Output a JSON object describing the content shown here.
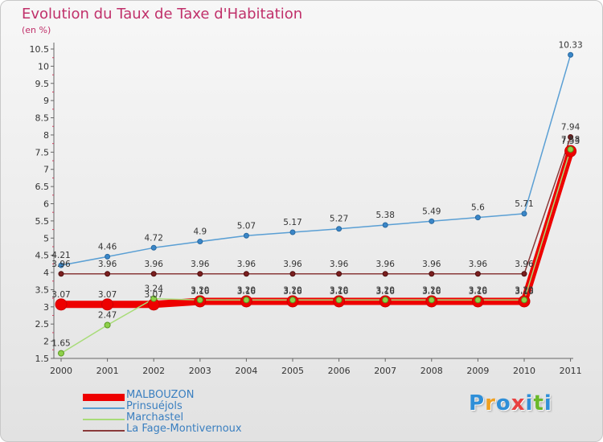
{
  "title": "Evolution du Taux de Taxe d'Habitation",
  "unit": "(en %)",
  "logo": {
    "letters": [
      {
        "ch": "P",
        "color": "#2f8fd8"
      },
      {
        "ch": "r",
        "color": "#f0a020"
      },
      {
        "ch": "o",
        "color": "#2f8fd8"
      },
      {
        "ch": "x",
        "color": "#e84040"
      },
      {
        "ch": "i",
        "color": "#2f8fd8"
      },
      {
        "ch": "t",
        "color": "#6ab82a"
      },
      {
        "ch": "i",
        "color": "#2f8fd8"
      }
    ]
  },
  "chart_data": {
    "type": "line",
    "title": "Evolution du Taux de Taxe d'Habitation",
    "ylabel": "(en %)",
    "x": [
      "2000",
      "2001",
      "2002",
      "2003",
      "2004",
      "2005",
      "2006",
      "2007",
      "2008",
      "2009",
      "2010",
      "2011"
    ],
    "ylim": [
      1.5,
      10.5
    ],
    "yticks": [
      "1.5",
      "2",
      "2.5",
      "3",
      "3.5",
      "4",
      "4.5",
      "5",
      "5.5",
      "6",
      "6.5",
      "7",
      "7.5",
      "8",
      "8.5",
      "9",
      "9.5",
      "10",
      "10.5"
    ],
    "grid": false,
    "legend_position": "bottom-left",
    "series": [
      {
        "name": "MALBOUZON",
        "color": "#ee0000",
        "values": [
          3.07,
          3.07,
          3.07,
          3.16,
          3.16,
          3.16,
          3.16,
          3.16,
          3.16,
          3.16,
          3.16,
          7.53
        ],
        "labels": [
          "3.07",
          "3.07",
          "3.07",
          "3.16",
          "3.16",
          "3.16",
          "3.16",
          "3.16",
          "3.16",
          "3.16",
          "3.16",
          "7.53"
        ]
      },
      {
        "name": "Prinsuéjols",
        "color": "#5a9fd4",
        "values": [
          4.21,
          4.46,
          4.72,
          4.9,
          5.07,
          5.17,
          5.27,
          5.38,
          5.49,
          5.6,
          5.71,
          10.33
        ],
        "labels": [
          "4.21",
          "4.46",
          "4.72",
          "4.9",
          "5.07",
          "5.17",
          "5.27",
          "5.38",
          "5.49",
          "5.6",
          "5.71",
          "10.33"
        ]
      },
      {
        "name": "Marchastel",
        "color": "#a8dc78",
        "values": [
          1.65,
          2.47,
          3.24,
          3.2,
          3.2,
          3.2,
          3.2,
          3.2,
          3.2,
          3.2,
          3.2,
          7.58
        ],
        "labels": [
          "1.65",
          "2.47",
          "3.24",
          "3.20",
          "3.20",
          "3.20",
          "3.20",
          "3.20",
          "3.20",
          "3.20",
          "3.20",
          "7.58"
        ]
      },
      {
        "name": "La Fage-Montivernoux",
        "color": "#8a3a3a",
        "values": [
          3.96,
          3.96,
          3.96,
          3.96,
          3.96,
          3.96,
          3.96,
          3.96,
          3.96,
          3.96,
          3.96,
          7.94
        ],
        "labels": [
          "3.96",
          "3.96",
          "3.96",
          "3.96",
          "3.96",
          "3.96",
          "3.96",
          "3.96",
          "3.96",
          "3.96",
          "3.96",
          "7.94"
        ]
      }
    ]
  }
}
